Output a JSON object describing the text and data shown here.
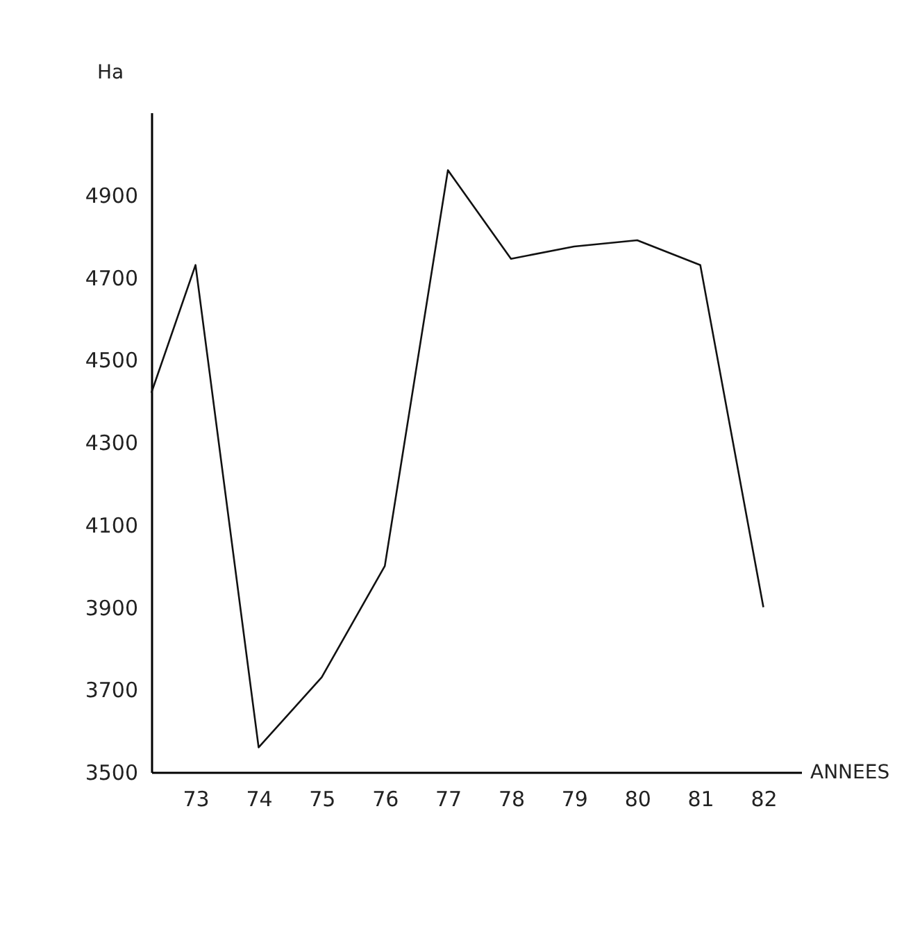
{
  "chart_data": {
    "type": "line",
    "xlabel": "ANNEES",
    "ylabel": "Ha",
    "x": [
      72.3,
      73,
      74,
      75,
      76,
      77,
      78,
      79,
      80,
      81,
      82
    ],
    "series": [
      {
        "color": "#111111",
        "values": [
          4420,
          4730,
          3560,
          3730,
          4000,
          4960,
          4745,
          4775,
          4790,
          4730,
          3900
        ]
      }
    ],
    "xlim": [
      72.3,
      82.6
    ],
    "xticks": [
      73,
      74,
      75,
      76,
      77,
      78,
      79,
      80,
      81,
      82
    ],
    "ylim": [
      3500,
      5100
    ],
    "yticks": [
      3500,
      3700,
      3900,
      4100,
      4300,
      4500,
      4700,
      4900
    ],
    "grid": false,
    "marker": "none",
    "line_style": "solid"
  }
}
